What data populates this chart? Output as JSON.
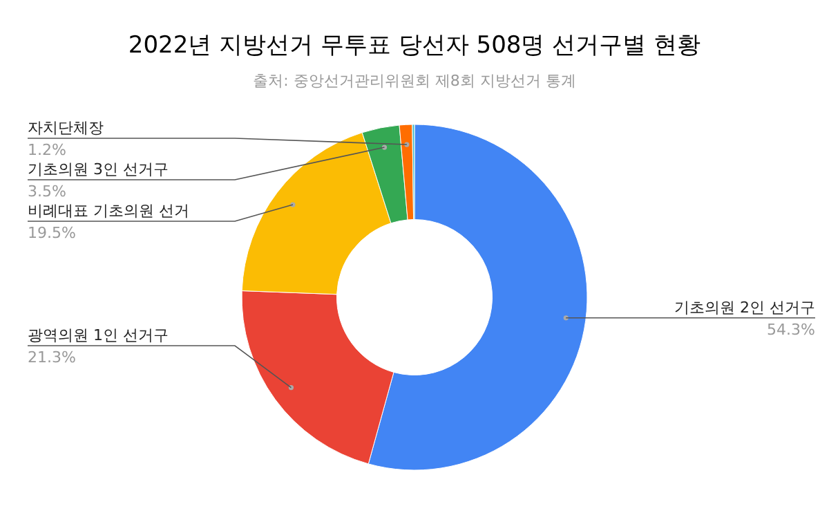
{
  "chart_data": {
    "type": "donut",
    "title": "2022년 지방선거 무투표 당선자 508명 선거구별 현황",
    "annotations": [
      "출처: 중앙선거관리위원회 제8회 지방선거 통계"
    ],
    "categories": [
      "기초의원 2인 선거구",
      "광역의원 1인 선거구",
      "비례대표 기초의원 선거",
      "기초의원 3인 선거구",
      "자치단체장",
      null
    ],
    "values": [
      54.3,
      21.3,
      19.5,
      3.5,
      1.2,
      0.2
    ],
    "colors": [
      "#4285f4",
      "#ea4335",
      "#fbbc04",
      "#34a853",
      "#ff6d01",
      "#46bdc6"
    ],
    "value_labels": [
      "54.3%",
      "21.3%",
      "19.5%",
      "3.5%",
      "1.2%",
      null
    ]
  }
}
